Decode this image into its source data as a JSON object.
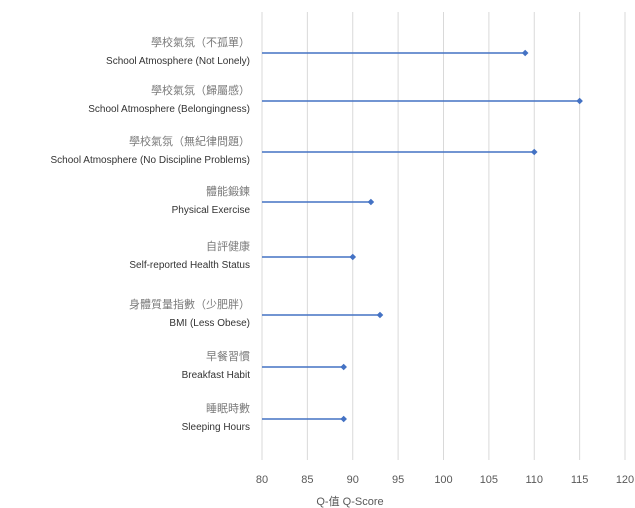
{
  "chart_data": {
    "type": "lollipop",
    "orientation": "horizontal",
    "categories": [
      {
        "zh": "學校氣氛（不孤單）",
        "en": "School Atmosphere (Not Lonely)"
      },
      {
        "zh": "學校氣氛（歸屬感）",
        "en": "School Atmosphere (Belongingness)"
      },
      {
        "zh": "學校氣氛（無紀律問題）",
        "en": "School Atmosphere (No Discipline Problems)"
      },
      {
        "zh": "體能鍛鍊",
        "en": "Physical Exercise"
      },
      {
        "zh": "自評健康",
        "en": "Self-reported Health Status"
      },
      {
        "zh": "身體質量指數（少肥胖）",
        "en": "BMI (Less Obese)"
      },
      {
        "zh": "早餐習慣",
        "en": "Breakfast Habit"
      },
      {
        "zh": "睡眠時數",
        "en": "Sleeping Hours"
      }
    ],
    "values": [
      109,
      115,
      110,
      92,
      90,
      93,
      89,
      89
    ],
    "xlim": [
      80,
      120
    ],
    "xticks": [
      "80",
      "85",
      "90",
      "95",
      "100",
      "105",
      "110",
      "115",
      "120"
    ],
    "xlabel": "Q-值 Q-Score",
    "grid": "vertical",
    "series_color": "#4472c4",
    "grid_color": "#d9d9d9"
  }
}
